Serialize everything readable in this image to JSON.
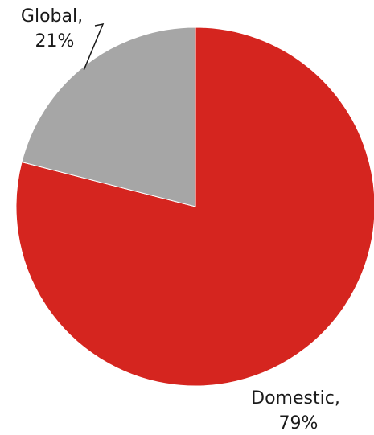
{
  "chart_data": {
    "type": "pie",
    "slices": [
      {
        "label": "Domestic",
        "value": 79,
        "value_text": "79%",
        "color": "#d5251f"
      },
      {
        "label": "Global",
        "value": 21,
        "value_text": "21%",
        "color": "#a6a6a6"
      }
    ],
    "start_angle_deg": 0,
    "direction": "clockwise",
    "label_format": "{label},\n{value_text}",
    "legend": "none",
    "title": ""
  }
}
